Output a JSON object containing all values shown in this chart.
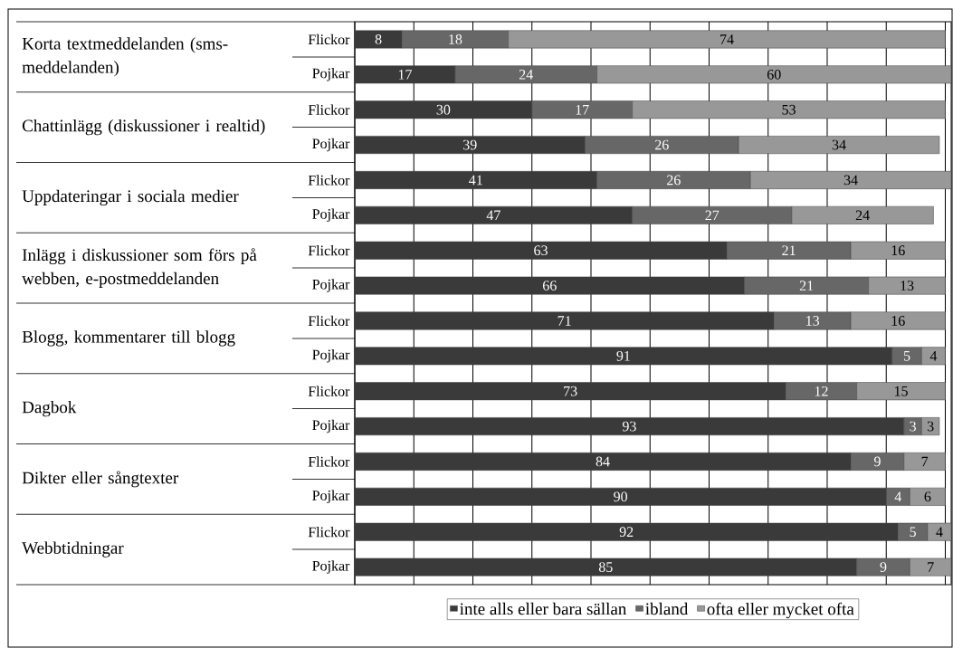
{
  "chart_data": {
    "type": "bar",
    "orientation": "horizontal",
    "stacked": true,
    "categories": [
      "Flickor",
      "Pojkar",
      "Flickor",
      "Pojkar",
      "Flickor",
      "Pojkar",
      "Flickor",
      "Pojkar",
      "Flickor",
      "Pojkar",
      "Flickor",
      "Pojkar",
      "Flickor",
      "Pojkar",
      "Flickor",
      "Pojkar"
    ],
    "series": [
      {
        "name": "inte alls eller bara sällan",
        "color": "#3a3a3a",
        "values": [
          8,
          17,
          30,
          39,
          41,
          47,
          63,
          66,
          71,
          91,
          73,
          93,
          84,
          90,
          92,
          85
        ]
      },
      {
        "name": "ibland",
        "color": "#676767",
        "values": [
          18,
          24,
          17,
          26,
          26,
          27,
          21,
          21,
          13,
          5,
          12,
          3,
          9,
          4,
          5,
          9
        ]
      },
      {
        "name": "ofta eller mycket ofta",
        "color": "#989898",
        "values": [
          74,
          60,
          53,
          34,
          34,
          24,
          16,
          13,
          16,
          4,
          15,
          3,
          7,
          6,
          4,
          7
        ]
      }
    ],
    "annotations": [
      "Korta textmeddelanden (sms-meddelanden)",
      "Chattinlägg (diskussioner i realtid)",
      "Uppdateringar i sociala medier",
      "Inlägg i diskussioner som förs på webben, e-postmeddelanden",
      "Blogg, kommentarer till blogg",
      "Dagbok",
      "Dikter eller sångtexter",
      "Webbtidningar"
    ],
    "xlim": [
      0,
      101
    ],
    "xticks": [
      {
        "value": 0,
        "label": null
      },
      {
        "value": 10,
        "label": null
      },
      {
        "value": 20,
        "label": null
      },
      {
        "value": 30,
        "label": null
      },
      {
        "value": 40,
        "label": null
      },
      {
        "value": 50,
        "label": null
      },
      {
        "value": 60,
        "label": null
      },
      {
        "value": 70,
        "label": null
      },
      {
        "value": 80,
        "label": null
      },
      {
        "value": 90,
        "label": null
      },
      {
        "value": 100,
        "label": null
      }
    ],
    "grid": "x",
    "tick_labels": "y",
    "legend": "bottom",
    "data_labels": true
  }
}
